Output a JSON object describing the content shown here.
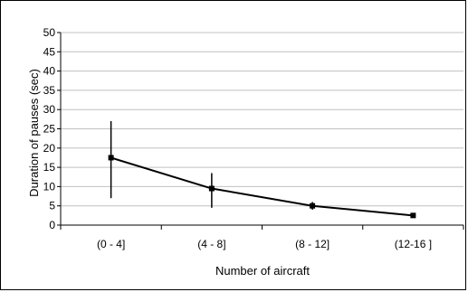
{
  "chart_data": {
    "type": "line",
    "categories": [
      "(0 - 4]",
      "(4 - 8]",
      "(8 - 12]",
      "(12-16 ]"
    ],
    "series": [
      {
        "values": [
          17.5,
          9.5,
          5,
          2.5
        ],
        "error_low": [
          7,
          4.5,
          4,
          2.5
        ],
        "error_high": [
          27,
          13.5,
          6,
          2.5
        ]
      }
    ],
    "xlabel": "Number of aircraft",
    "ylabel": "Duration of pauses (sec)",
    "ylim": [
      0,
      50
    ],
    "yticks": [
      "0",
      "5",
      "10",
      "15",
      "20",
      "25",
      "30",
      "35",
      "40",
      "45",
      "50"
    ],
    "grid": true,
    "colors": {
      "line": "#000000",
      "grid": "#c0c0c0",
      "axis": "#000000"
    }
  }
}
